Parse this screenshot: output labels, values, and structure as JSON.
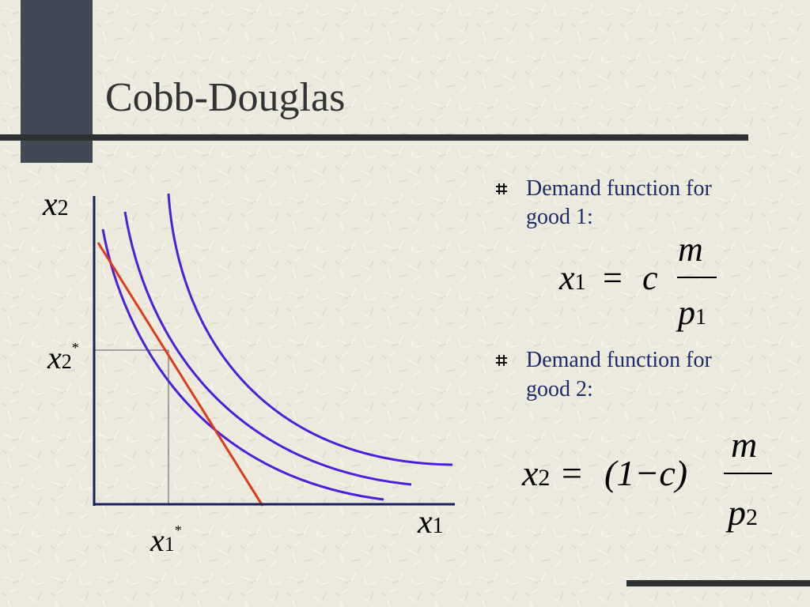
{
  "title": "Cobb-Douglas",
  "diagram": {
    "y_axis_label": {
      "base": "x",
      "sub": "2"
    },
    "x_axis_label": {
      "base": "x",
      "sub": "1"
    },
    "optimum_y_label": {
      "base": "x",
      "sub": "2",
      "sup": "*"
    },
    "optimum_x_label": {
      "base": "x",
      "sub": "1",
      "sup": "*"
    }
  },
  "bullets": [
    {
      "text_line_1": "Demand function for",
      "text_line_2": "good 1:",
      "equation": {
        "lhs": {
          "base": "x",
          "sub": "1"
        },
        "relation": "=",
        "factor": "c",
        "numerator": "m",
        "denominator": {
          "base": "p",
          "sub": "1"
        }
      }
    },
    {
      "text_line_1": "Demand function for",
      "text_line_2": "good 2:",
      "equation": {
        "lhs": {
          "base": "x",
          "sub": "2"
        },
        "relation": "=",
        "factor": "(1−c)",
        "numerator": "m",
        "denominator": {
          "base": "p",
          "sub": "2"
        }
      }
    }
  ]
}
